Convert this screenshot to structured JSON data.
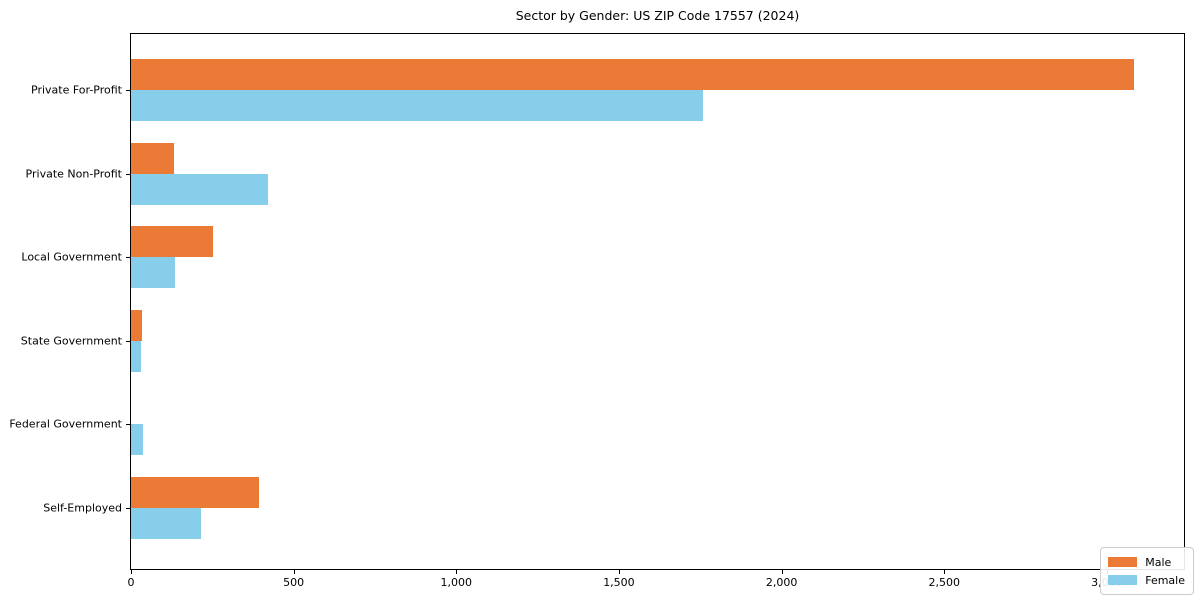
{
  "title": "Sector by Gender: US ZIP Code 17557 (2024)",
  "chart_data": {
    "type": "bar",
    "orientation": "horizontal",
    "title": "Sector by Gender: US ZIP Code 17557 (2024)",
    "categories": [
      "Private For-Profit",
      "Private Non-Profit",
      "Local Government",
      "State Government",
      "Federal Government",
      "Self-Employed"
    ],
    "series": [
      {
        "name": "Male",
        "color": "#EB7A36",
        "values": [
          3083,
          132,
          251,
          34,
          0,
          393
        ]
      },
      {
        "name": "Female",
        "color": "#87CEEB",
        "values": [
          1757,
          420,
          135,
          31,
          37,
          215
        ]
      }
    ],
    "xlabel": "",
    "ylabel": "",
    "xlim": [
      0,
      3237
    ],
    "xticks": [
      0,
      500,
      1000,
      1500,
      2000,
      2500,
      3000
    ],
    "xtick_labels": [
      "0",
      "500",
      "1,000",
      "1,500",
      "2,000",
      "2,500",
      "3,000"
    ],
    "grid": false,
    "legend": {
      "position": "lower right",
      "entries": [
        "Male",
        "Female"
      ]
    }
  }
}
